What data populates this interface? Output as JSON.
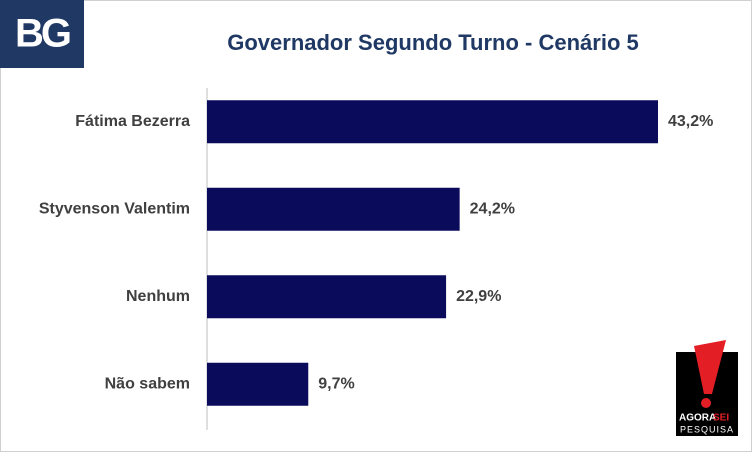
{
  "logo": "BG",
  "brand": {
    "line1": "AGORA",
    "line2": "SEI",
    "line3": "PESQUISA"
  },
  "chart_data": {
    "type": "bar",
    "orientation": "horizontal",
    "title": "Governador Segundo Turno - Cenário 5",
    "categories": [
      "Fátima Bezerra",
      "Styvenson Valentim",
      "Nenhum",
      "Não sabem"
    ],
    "values": [
      43.2,
      24.2,
      22.9,
      9.7
    ],
    "value_labels": [
      "43,2%",
      "24,2%",
      "22,9%",
      "9,7%"
    ],
    "color": "#0b0b5c",
    "xlim": [
      0,
      50
    ]
  }
}
